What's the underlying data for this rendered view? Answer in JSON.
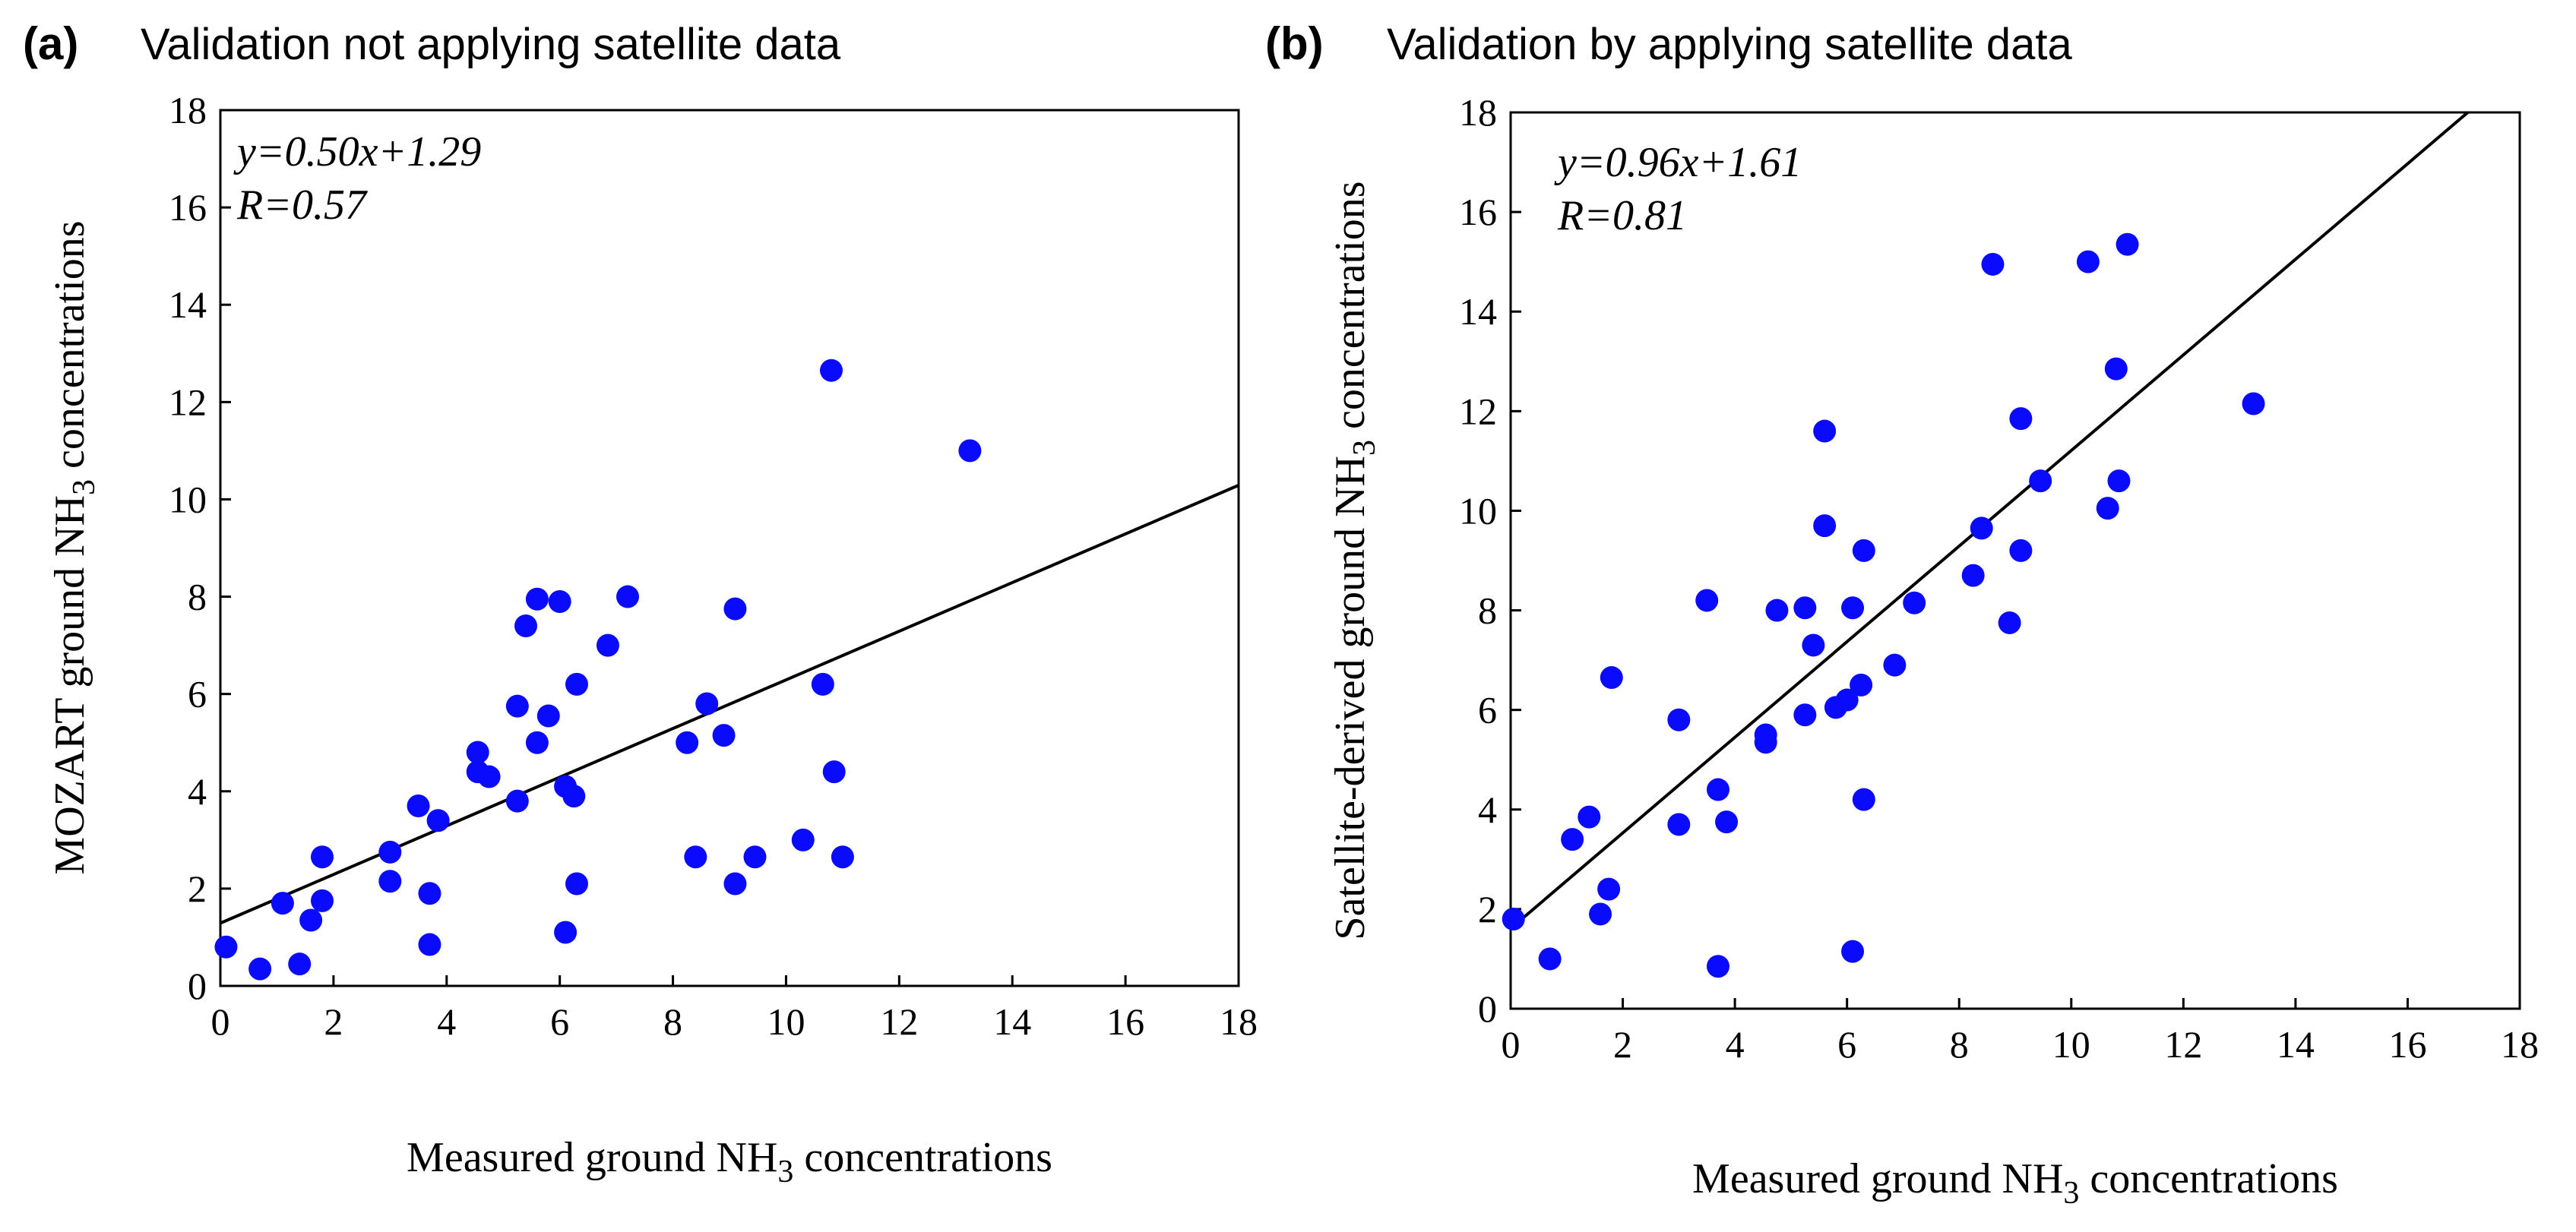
{
  "chart_data": [
    {
      "type": "scatter",
      "panel_tag": "(a)",
      "title": "Validation not applying satellite data",
      "xlabel": {
        "pre": "Measured ground NH",
        "sub": "3",
        "post": " concentrations"
      },
      "ylabel": {
        "pre": "MOZART ground NH",
        "sub": "3",
        "post": " concentrations"
      },
      "xlim": [
        0,
        18
      ],
      "ylim": [
        0,
        18
      ],
      "xticks": [
        0,
        2,
        4,
        6,
        8,
        10,
        12,
        14,
        16,
        18
      ],
      "yticks": [
        0,
        2,
        4,
        6,
        8,
        10,
        12,
        14,
        16,
        18
      ],
      "equation": "y=0.50x+1.29",
      "r_text": "R=0.57",
      "fit": {
        "slope": 0.5,
        "intercept": 1.29
      },
      "color": "#0a0aff",
      "points": [
        {
          "x": 0.1,
          "y": 0.8
        },
        {
          "x": 0.7,
          "y": 0.35
        },
        {
          "x": 1.1,
          "y": 1.7
        },
        {
          "x": 1.4,
          "y": 0.45
        },
        {
          "x": 1.6,
          "y": 1.35
        },
        {
          "x": 1.8,
          "y": 1.75
        },
        {
          "x": 1.8,
          "y": 2.65
        },
        {
          "x": 3.0,
          "y": 2.75
        },
        {
          "x": 3.0,
          "y": 2.15
        },
        {
          "x": 3.5,
          "y": 3.7
        },
        {
          "x": 3.7,
          "y": 1.9
        },
        {
          "x": 3.7,
          "y": 0.85
        },
        {
          "x": 3.85,
          "y": 3.4
        },
        {
          "x": 4.55,
          "y": 4.8
        },
        {
          "x": 4.55,
          "y": 4.4
        },
        {
          "x": 4.75,
          "y": 4.3
        },
        {
          "x": 5.25,
          "y": 3.8
        },
        {
          "x": 5.25,
          "y": 5.75
        },
        {
          "x": 5.4,
          "y": 7.4
        },
        {
          "x": 5.6,
          "y": 7.95
        },
        {
          "x": 5.6,
          "y": 5.0
        },
        {
          "x": 5.8,
          "y": 5.55
        },
        {
          "x": 6.0,
          "y": 7.9
        },
        {
          "x": 6.1,
          "y": 4.1
        },
        {
          "x": 6.1,
          "y": 1.1
        },
        {
          "x": 6.25,
          "y": 3.9
        },
        {
          "x": 6.3,
          "y": 6.2
        },
        {
          "x": 6.3,
          "y": 2.1
        },
        {
          "x": 6.85,
          "y": 7.0
        },
        {
          "x": 7.2,
          "y": 8.0
        },
        {
          "x": 8.25,
          "y": 5.0
        },
        {
          "x": 8.4,
          "y": 2.65
        },
        {
          "x": 8.6,
          "y": 5.8
        },
        {
          "x": 8.9,
          "y": 5.15
        },
        {
          "x": 9.1,
          "y": 7.75
        },
        {
          "x": 9.1,
          "y": 2.1
        },
        {
          "x": 9.45,
          "y": 2.65
        },
        {
          "x": 10.3,
          "y": 3.0
        },
        {
          "x": 10.65,
          "y": 6.2
        },
        {
          "x": 10.8,
          "y": 12.65
        },
        {
          "x": 10.85,
          "y": 4.4
        },
        {
          "x": 11.0,
          "y": 2.65
        },
        {
          "x": 13.25,
          "y": 11.0
        }
      ]
    },
    {
      "type": "scatter",
      "panel_tag": "(b)",
      "title": "Validation by applying satellite data",
      "xlabel": {
        "pre": "Measured ground NH",
        "sub": "3",
        "post": " concentrations"
      },
      "ylabel": {
        "pre": "Satellite-derived ground NH",
        "sub": "3",
        "post": " concentrations"
      },
      "xlim": [
        0,
        18
      ],
      "ylim": [
        0,
        18
      ],
      "xticks": [
        0,
        2,
        4,
        6,
        8,
        10,
        12,
        14,
        16,
        18
      ],
      "yticks": [
        0,
        2,
        4,
        6,
        8,
        10,
        12,
        14,
        16,
        18
      ],
      "equation": "y=0.96x+1.61",
      "r_text": "R=0.81",
      "fit": {
        "slope": 0.96,
        "intercept": 1.61
      },
      "color": "#0a0aff",
      "points": [
        {
          "x": 0.05,
          "y": 1.8
        },
        {
          "x": 0.7,
          "y": 1.0
        },
        {
          "x": 1.1,
          "y": 3.4
        },
        {
          "x": 1.4,
          "y": 3.85
        },
        {
          "x": 1.6,
          "y": 1.9
        },
        {
          "x": 1.75,
          "y": 2.4
        },
        {
          "x": 1.8,
          "y": 6.65
        },
        {
          "x": 3.0,
          "y": 5.8
        },
        {
          "x": 3.0,
          "y": 3.7
        },
        {
          "x": 3.5,
          "y": 8.2
        },
        {
          "x": 3.7,
          "y": 4.4
        },
        {
          "x": 3.7,
          "y": 0.85
        },
        {
          "x": 3.85,
          "y": 3.75
        },
        {
          "x": 4.55,
          "y": 5.5
        },
        {
          "x": 4.55,
          "y": 5.35
        },
        {
          "x": 4.75,
          "y": 8.0
        },
        {
          "x": 5.25,
          "y": 8.05
        },
        {
          "x": 5.25,
          "y": 5.9
        },
        {
          "x": 5.4,
          "y": 7.3
        },
        {
          "x": 5.6,
          "y": 11.6
        },
        {
          "x": 5.6,
          "y": 9.7
        },
        {
          "x": 5.8,
          "y": 6.05
        },
        {
          "x": 6.0,
          "y": 6.2
        },
        {
          "x": 6.1,
          "y": 8.05
        },
        {
          "x": 6.1,
          "y": 1.15
        },
        {
          "x": 6.25,
          "y": 6.5
        },
        {
          "x": 6.3,
          "y": 9.2
        },
        {
          "x": 6.3,
          "y": 4.2
        },
        {
          "x": 6.85,
          "y": 6.9
        },
        {
          "x": 7.2,
          "y": 8.15
        },
        {
          "x": 8.25,
          "y": 8.7
        },
        {
          "x": 8.4,
          "y": 9.65
        },
        {
          "x": 8.6,
          "y": 14.95
        },
        {
          "x": 8.9,
          "y": 7.75
        },
        {
          "x": 9.1,
          "y": 11.85
        },
        {
          "x": 9.1,
          "y": 9.2
        },
        {
          "x": 9.45,
          "y": 10.6
        },
        {
          "x": 10.3,
          "y": 15.0
        },
        {
          "x": 10.65,
          "y": 10.05
        },
        {
          "x": 10.8,
          "y": 12.85
        },
        {
          "x": 10.85,
          "y": 10.6
        },
        {
          "x": 11.0,
          "y": 15.35
        },
        {
          "x": 13.25,
          "y": 12.15
        }
      ]
    }
  ]
}
